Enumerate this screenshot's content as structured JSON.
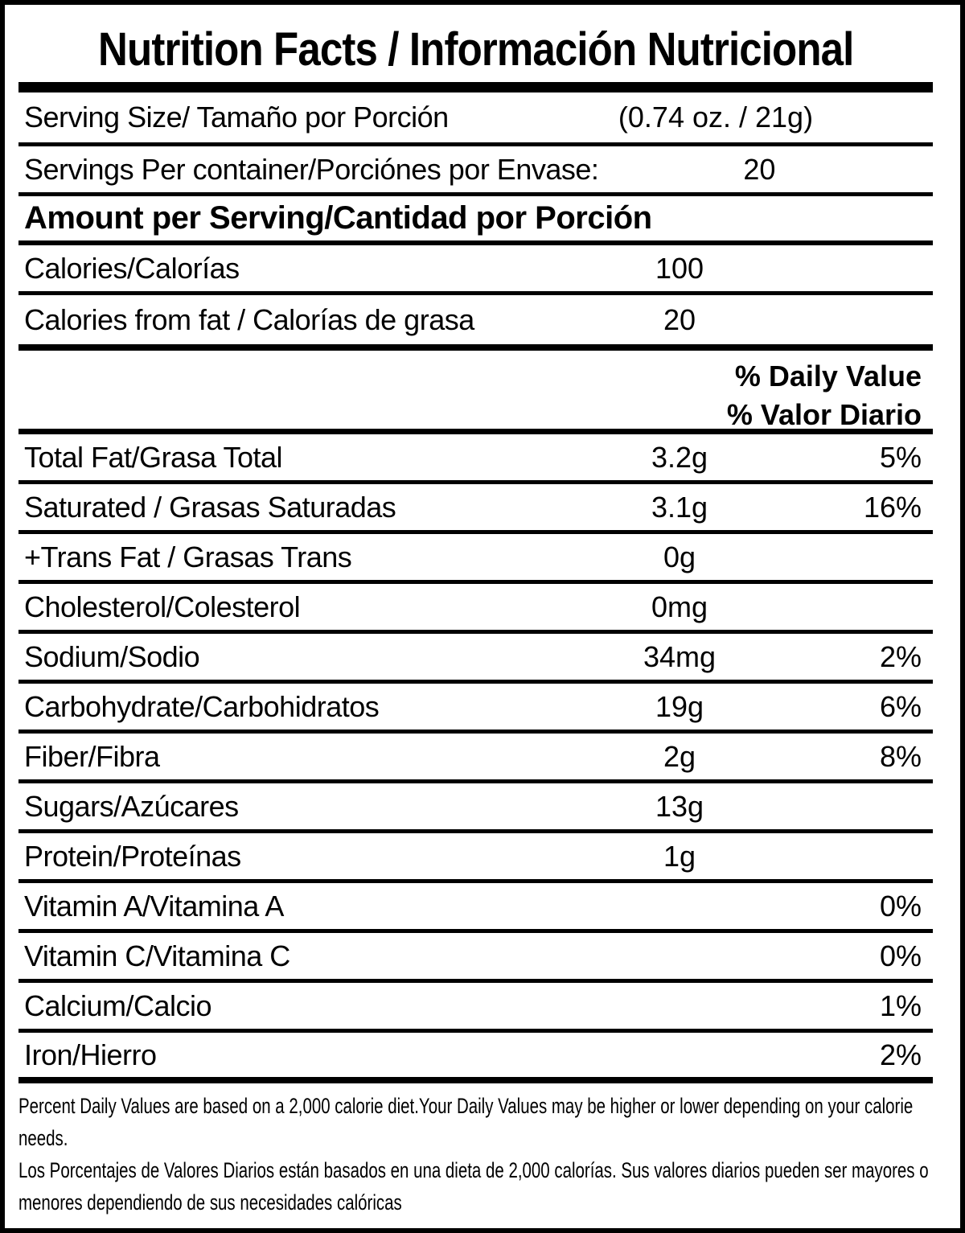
{
  "label": {
    "title": "Nutrition Facts / Información Nutricional",
    "serving_rows": [
      {
        "label": "Serving Size/ Tamaño por Porción",
        "value": "(0.74 oz. / 21g)"
      },
      {
        "label": "Servings Per container/Porciónes por Envase:",
        "value": "20"
      }
    ],
    "section_heading": "Amount per Serving/Cantidad por Porción",
    "calorie_rows": [
      {
        "label": "Calories/Calorías",
        "value": "100"
      },
      {
        "label": "Calories from fat / Calorías de grasa",
        "value": "20"
      }
    ],
    "daily_value_heading_en": "% Daily Value",
    "daily_value_heading_es": "% Valor Diario",
    "nutrient_rows": [
      {
        "label": "Total Fat/Grasa Total",
        "amount": "3.2g",
        "daily_value": "5%"
      },
      {
        "label": "Saturated / Grasas Saturadas",
        "amount": "3.1g",
        "daily_value": "16%"
      },
      {
        "label": "+Trans Fat / Grasas Trans",
        "amount": "0g",
        "daily_value": ""
      },
      {
        "label": "Cholesterol/Colesterol",
        "amount": "0mg",
        "daily_value": ""
      },
      {
        "label": "Sodium/Sodio",
        "amount": "34mg",
        "daily_value": "2%"
      },
      {
        "label": "Carbohydrate/Carbohidratos",
        "amount": "19g",
        "daily_value": "6%"
      },
      {
        "label": "Fiber/Fibra",
        "amount": "2g",
        "daily_value": "8%"
      },
      {
        "label": "Sugars/Azúcares",
        "amount": "13g",
        "daily_value": ""
      },
      {
        "label": "Protein/Proteínas",
        "amount": "1g",
        "daily_value": ""
      },
      {
        "label": "Vitamin A/Vitamina A",
        "amount": "",
        "daily_value": "0%"
      },
      {
        "label": "Vitamin C/Vitamina C",
        "amount": "",
        "daily_value": "0%"
      },
      {
        "label": "Calcium/Calcio",
        "amount": "",
        "daily_value": "1%"
      },
      {
        "label": "Iron/Hierro",
        "amount": "",
        "daily_value": "2%"
      }
    ],
    "footnote_en": "Percent Daily Values are based on a 2,000 calorie diet.Your Daily Values may be higher or lower depending on your calorie needs.",
    "footnote_es": "Los Porcentajes de Valores Diarios están basados en una dieta de 2,000 calorías. Sus valores diarios pueden ser mayores o menores dependiendo de sus necesidades calóricas",
    "colors": {
      "text": "#000000",
      "background": "#ffffff",
      "rule": "#000000"
    }
  }
}
